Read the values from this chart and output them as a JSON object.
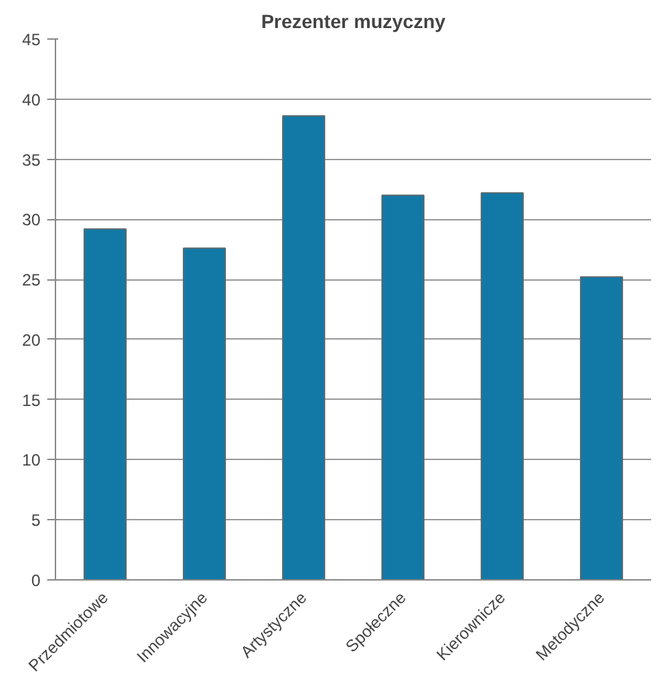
{
  "chart_data": {
    "type": "bar",
    "title": "Prezenter muzyczny",
    "categories": [
      "Przedmiotowe",
      "Innowacyjne",
      "Artystyczne",
      "Społeczne",
      "Kierownicze",
      "Metodyczne"
    ],
    "values": [
      29.2,
      27.6,
      38.6,
      32.0,
      32.2,
      25.2
    ],
    "color": "#1279a6",
    "ylim": [
      0,
      45
    ],
    "yticks": [
      0,
      5,
      10,
      15,
      20,
      25,
      30,
      35,
      40,
      45
    ],
    "grid": "y"
  }
}
